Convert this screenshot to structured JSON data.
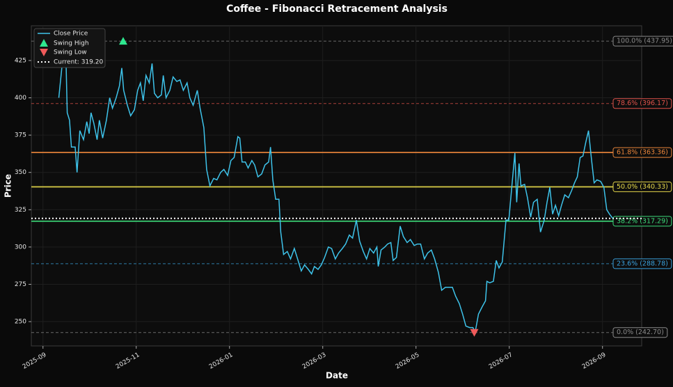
{
  "chart_data": {
    "type": "line",
    "title": "Coffee - Fibonacci Retracement Analysis",
    "x_label": "Date",
    "y_label": "Price",
    "x": [
      0.34,
      0.42,
      0.49,
      0.52,
      0.57,
      0.61,
      0.69,
      0.73,
      0.79,
      0.87,
      0.94,
      0.99,
      1.03,
      1.09,
      1.16,
      1.21,
      1.28,
      1.36,
      1.43,
      1.49,
      1.57,
      1.64,
      1.69,
      1.73,
      1.81,
      1.88,
      1.96,
      2.03,
      2.09,
      2.15,
      2.21,
      2.28,
      2.34,
      2.39,
      2.46,
      2.54,
      2.58,
      2.64,
      2.72,
      2.79,
      2.87,
      2.94,
      3.01,
      3.09,
      3.15,
      3.22,
      3.31,
      3.37,
      3.45,
      3.51,
      3.58,
      3.66,
      3.73,
      3.81,
      3.88,
      3.96,
      4.03,
      4.1,
      4.18,
      4.22,
      4.27,
      4.34,
      4.4,
      4.48,
      4.54,
      4.61,
      4.69,
      4.76,
      4.84,
      4.88,
      4.93,
      4.99,
      5.06,
      5.1,
      5.16,
      5.24,
      5.31,
      5.39,
      5.46,
      5.54,
      5.61,
      5.69,
      5.76,
      5.82,
      5.9,
      5.97,
      6.04,
      6.12,
      6.19,
      6.27,
      6.34,
      6.42,
      6.49,
      6.57,
      6.64,
      6.72,
      6.79,
      6.87,
      6.94,
      7.01,
      7.09,
      7.16,
      7.19,
      7.25,
      7.33,
      7.39,
      7.46,
      7.51,
      7.58,
      7.66,
      7.73,
      7.81,
      7.88,
      7.96,
      8.03,
      8.1,
      8.18,
      8.25,
      8.33,
      8.4,
      8.48,
      8.55,
      8.63,
      8.7,
      8.78,
      8.85,
      8.93,
      9.0,
      9.07,
      9.15,
      9.22,
      9.27,
      9.34,
      9.42,
      9.49,
      9.52,
      9.58,
      9.66,
      9.72,
      9.78,
      9.85,
      9.93,
      9.99,
      10.06,
      10.12,
      10.16,
      10.21,
      10.25,
      10.33,
      10.39,
      10.46,
      10.52,
      10.6,
      10.67,
      10.75,
      10.81,
      10.87,
      10.93,
      10.99,
      11.06,
      11.12,
      11.19,
      11.27,
      11.34,
      11.4,
      11.46,
      11.52,
      11.58,
      11.64,
      11.7,
      11.76,
      11.82,
      11.88,
      11.96,
      12.03,
      12.09,
      12.15,
      12.22
    ],
    "series": [
      {
        "name": "Close Price",
        "color": "#3ec3ea",
        "values": [
          400,
          425,
          430,
          390,
          385,
          367,
          367,
          350,
          378,
          372,
          384,
          376,
          390,
          383,
          372,
          385,
          373,
          385,
          400,
          393,
          400,
          408,
          420,
          405,
          395,
          388,
          392,
          405,
          410,
          398,
          415,
          410,
          423,
          403,
          400,
          402,
          415,
          400,
          405,
          414,
          411,
          412,
          405,
          410,
          400,
          395,
          405,
          393,
          380,
          352,
          341,
          346,
          345,
          350,
          352,
          348,
          358,
          360,
          374,
          373,
          357,
          357,
          353,
          358,
          355,
          347,
          349,
          355,
          357,
          367,
          345,
          332,
          332,
          310,
          295,
          297,
          292,
          299,
          292,
          284,
          288,
          285,
          282,
          287,
          285,
          288,
          293,
          300,
          299,
          292,
          296,
          299,
          302,
          308,
          306,
          318,
          304,
          297,
          292,
          299,
          296,
          300,
          287,
          298,
          300,
          302,
          303,
          291,
          293,
          314,
          307,
          303,
          305,
          301,
          302,
          302,
          292,
          296,
          298,
          292,
          283,
          271,
          273,
          273,
          273,
          267,
          262,
          255,
          247,
          246,
          246,
          243,
          255,
          260,
          264,
          277,
          276,
          277,
          291,
          286,
          290,
          318,
          318,
          342,
          363,
          330,
          356,
          341,
          342,
          333,
          320,
          330,
          332,
          310,
          318,
          330,
          340,
          322,
          328,
          321,
          328,
          335,
          333,
          338,
          343,
          347,
          360,
          361,
          370,
          378,
          360,
          343,
          345,
          344,
          340,
          325,
          322,
          319.2
        ]
      }
    ],
    "swing_high": {
      "name": "Swing High",
      "x": 1.72,
      "value": 437.95,
      "color": "#2ee88f"
    },
    "swing_low": {
      "name": "Swing Low",
      "x": 9.25,
      "value": 242.7,
      "color": "#f05a5a"
    },
    "current": {
      "name": "Current: 319.20",
      "value": 319.2,
      "color": "#ffffff"
    },
    "levels": [
      {
        "name": "100.0% (437.95)",
        "value": 437.95,
        "color": "#8a8a8a",
        "style": "dashed"
      },
      {
        "name": "78.6% (396.17)",
        "value": 396.17,
        "color": "#e0524a",
        "style": "dashed"
      },
      {
        "name": "61.8% (363.36)",
        "value": 363.36,
        "color": "#e8843a",
        "style": "solid"
      },
      {
        "name": "50.0% (340.33)",
        "value": 340.33,
        "color": "#e6d84a",
        "style": "solid"
      },
      {
        "name": "38.2% (317.29)",
        "value": 317.29,
        "color": "#3ddc7a",
        "style": "solid"
      },
      {
        "name": "23.6% (288.78)",
        "value": 288.78,
        "color": "#3aa0dc",
        "style": "dashed"
      },
      {
        "name": "0.0% (242.70)",
        "value": 242.7,
        "color": "#8a8a8a",
        "style": "dashed"
      }
    ],
    "xlim": [
      -0.25,
      12.84
    ],
    "xticks": [
      {
        "value": 0,
        "label": "2025-09"
      },
      {
        "value": 2,
        "label": "2025-11"
      },
      {
        "value": 4,
        "label": "2026-01"
      },
      {
        "value": 6,
        "label": "2026-03"
      },
      {
        "value": 8,
        "label": "2026-05"
      },
      {
        "value": 10,
        "label": "2026-07"
      },
      {
        "value": 12,
        "label": "2026-09"
      }
    ],
    "ylim": [
      233.7,
      448.3
    ],
    "yticks": [
      250,
      275,
      300,
      325,
      350,
      375,
      400,
      425
    ],
    "grid": true
  }
}
